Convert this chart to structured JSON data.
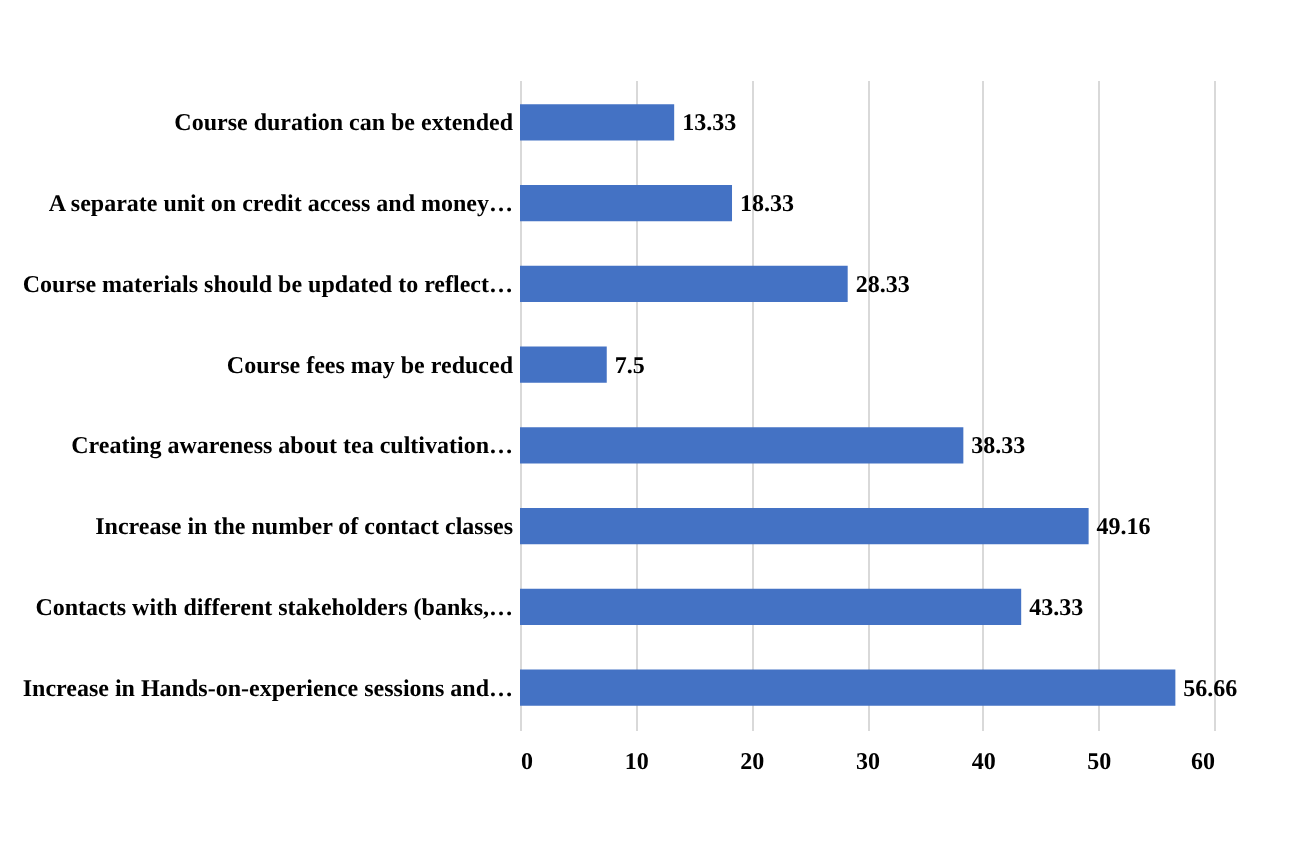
{
  "chart_data": {
    "type": "bar",
    "orientation": "horizontal",
    "categories": [
      "Course duration can be extended",
      "A separate unit on credit access and money…",
      "Course materials should be updated to reflect…",
      "Course fees may be reduced",
      "Creating awareness about tea cultivation…",
      "Increase in the number of contact classes",
      "Contacts with different stakeholders (banks,…",
      "Increase in Hands-on-experience sessions and…"
    ],
    "values": [
      13.33,
      18.33,
      28.33,
      7.5,
      38.33,
      49.16,
      43.33,
      56.66
    ],
    "color": "#4472c4",
    "xlim": [
      0,
      60
    ],
    "xticks": [
      0,
      10,
      20,
      30,
      40,
      50,
      60
    ],
    "grid": "x",
    "data_labels": true
  }
}
